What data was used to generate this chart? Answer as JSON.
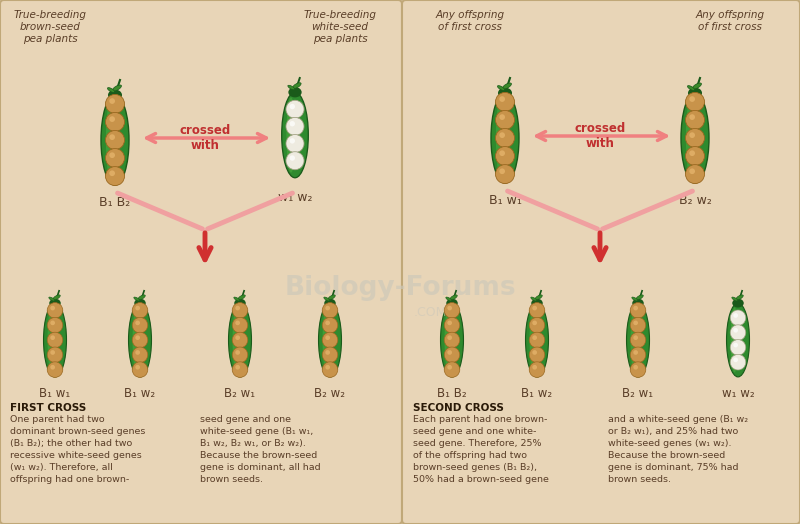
{
  "bg_color": "#e8d5b7",
  "text_color": "#5a3e28",
  "bold_color": "#2a1a08",
  "arrow_red": "#d03030",
  "arrow_pink": "#f0a0a0",
  "seed_brown": "#c8934a",
  "seed_brown_edge": "#9a6820",
  "seed_brown_hi": "#e8b870",
  "seed_white": "#eeebe0",
  "seed_white_edge": "#a0a080",
  "pod_green": "#2e7d2e",
  "pod_green_hi": "#4aaa3a",
  "pod_green_light": "#5aba4a",
  "pod_tip": "#1a5a1a",
  "watermark": "#c8c4b8",
  "left_title": [
    "True-breeding",
    "brown-seed",
    "pea plants"
  ],
  "right_title": [
    "True-breeding",
    "white-seed",
    "pea plants"
  ],
  "left2_title": [
    "Any offspring",
    "of first cross"
  ],
  "right2_title": [
    "Any offspring",
    "of first cross"
  ],
  "crossed_with": "crossed\nwith",
  "label_B1B2": "B₁ B₂",
  "label_w1w2": "w₁ w₂",
  "label_B1w1": "B₁ w₁",
  "label_B2w2": "B₂ w₂",
  "off1_labels": [
    "B₁ w₁",
    "B₁ w₂",
    "B₂ w₁",
    "B₂ w₂"
  ],
  "off2_labels": [
    "B₁ B₂",
    "B₁ w₂",
    "B₂ w₁",
    "w₁ w₂"
  ],
  "first_cross_title": "FIRST CROSS",
  "first_cross_col1": "One parent had two\ndominant brown-seed genes\n(B₁ B₂); the other had two\nrecessive white-seed genes\n(w₁ w₂). Therefore, all\noffspring had one brown-",
  "first_cross_col2": "seed gene and one\nwhite-seed gene (B₁ w₁,\nB₁ w₂, B₂ w₁, or B₂ w₂).\nBecause the brown-seed\ngene is dominant, all had\nbrown seeds.",
  "second_cross_title": "SECOND CROSS",
  "second_cross_col1": "Each parent had one brown-\nseed gene and one white-\nseed gene. Therefore, 25%\nof the offspring had two\nbrown-seed genes (B₁ B₂),\n50% had a brown-seed gene",
  "second_cross_col2": "and a white-seed gene (B₁ w₂\nor B₂ w₁), and 25% had two\nwhite-seed genes (w₁ w₂).\nBecause the brown-seed\ngene is dominant, 75% had\nbrown seeds."
}
